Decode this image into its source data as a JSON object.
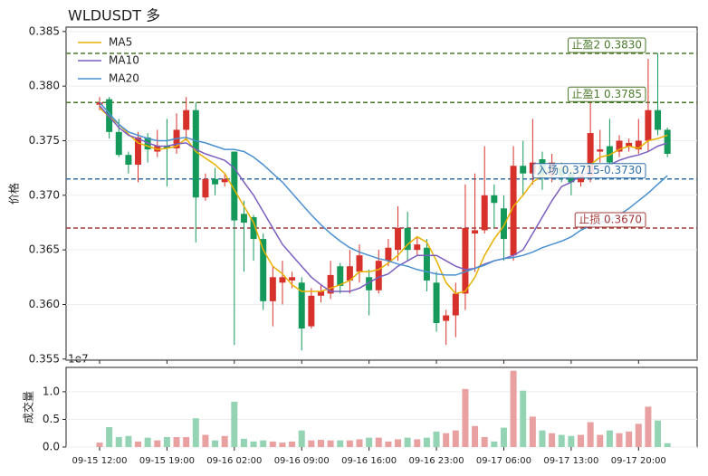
{
  "chart_data": {
    "type": "candlestick",
    "title": "WLDUSDT  多",
    "ylabel": "价格",
    "categories": [
      "09-15 12:00",
      null,
      null,
      null,
      null,
      null,
      null,
      "09-15 19:00",
      null,
      null,
      null,
      null,
      null,
      null,
      "09-16 02:00",
      null,
      null,
      null,
      null,
      null,
      null,
      "09-16 09:00",
      null,
      null,
      null,
      null,
      null,
      null,
      "09-16 16:00",
      null,
      null,
      null,
      null,
      null,
      null,
      "09-16 23:00",
      null,
      null,
      null,
      null,
      null,
      null,
      "09-17 06:00",
      null,
      null,
      null,
      null,
      null,
      null,
      "09-17 13:00",
      null,
      null,
      null,
      null,
      null,
      null,
      "09-17 20:00",
      null,
      null,
      null
    ],
    "open": [
      0.3783,
      0.3788,
      0.3758,
      0.3737,
      0.3728,
      0.3753,
      0.374,
      0.3745,
      0.3743,
      0.376,
      0.3778,
      0.3698,
      0.3715,
      0.3712,
      0.374,
      0.3683,
      0.368,
      0.366,
      0.3603,
      0.362,
      0.3622,
      0.362,
      0.358,
      0.3608,
      0.361,
      0.3635,
      0.3622,
      0.363,
      0.3625,
      0.3613,
      0.364,
      0.365,
      0.367,
      0.365,
      0.3652,
      0.362,
      0.3585,
      0.359,
      0.361,
      0.3665,
      0.3668,
      0.37,
      0.3688,
      0.3645,
      0.3727,
      0.372,
      0.3733,
      0.3718,
      0.3725,
      0.372,
      0.3712,
      0.3718,
      0.374,
      0.3745,
      0.374,
      0.3745,
      0.3742,
      0.375,
      0.3778,
      0.376
    ],
    "high": [
      0.379,
      0.379,
      0.377,
      0.374,
      0.3758,
      0.3757,
      0.376,
      0.377,
      0.3775,
      0.379,
      0.3785,
      0.372,
      0.3725,
      0.372,
      0.374,
      0.3695,
      0.3682,
      0.3665,
      0.3635,
      0.364,
      0.363,
      0.3625,
      0.3615,
      0.3618,
      0.364,
      0.3638,
      0.365,
      0.3655,
      0.3632,
      0.365,
      0.366,
      0.369,
      0.3685,
      0.3662,
      0.366,
      0.363,
      0.3595,
      0.362,
      0.371,
      0.372,
      0.3745,
      0.371,
      0.37,
      0.3745,
      0.375,
      0.377,
      0.374,
      0.3738,
      0.373,
      0.3725,
      0.3722,
      0.3785,
      0.376,
      0.377,
      0.3755,
      0.3752,
      0.377,
      0.3825,
      0.383,
      0.3762
    ],
    "low": [
      0.3778,
      0.3752,
      0.3735,
      0.372,
      0.3712,
      0.373,
      0.3735,
      0.3708,
      0.3738,
      0.375,
      0.3657,
      0.3695,
      0.37,
      0.3708,
      0.3563,
      0.363,
      0.364,
      0.3595,
      0.358,
      0.36,
      0.3615,
      0.3558,
      0.3578,
      0.3602,
      0.3605,
      0.361,
      0.361,
      0.362,
      0.359,
      0.361,
      0.3635,
      0.364,
      0.364,
      0.3645,
      0.3612,
      0.3575,
      0.3563,
      0.357,
      0.3595,
      0.363,
      0.3665,
      0.367,
      0.364,
      0.364,
      0.37,
      0.371,
      0.3705,
      0.3712,
      0.3712,
      0.37,
      0.3708,
      0.3712,
      0.373,
      0.3728,
      0.3735,
      0.374,
      0.3738,
      0.374,
      0.3755,
      0.3735
    ],
    "close": [
      0.3785,
      0.3758,
      0.3737,
      0.3728,
      0.3753,
      0.3742,
      0.3745,
      0.3743,
      0.376,
      0.3778,
      0.3698,
      0.3715,
      0.371,
      0.3715,
      0.3677,
      0.3675,
      0.366,
      0.3603,
      0.3625,
      0.3625,
      0.3625,
      0.3578,
      0.3608,
      0.3612,
      0.3627,
      0.3617,
      0.3635,
      0.3645,
      0.3613,
      0.364,
      0.3652,
      0.367,
      0.365,
      0.3655,
      0.3622,
      0.3583,
      0.359,
      0.361,
      0.367,
      0.3668,
      0.37,
      0.3693,
      0.366,
      0.3727,
      0.372,
      0.373,
      0.3718,
      0.373,
      0.3718,
      0.3712,
      0.3718,
      0.3757,
      0.3742,
      0.373,
      0.375,
      0.3748,
      0.375,
      0.3778,
      0.376,
      0.3738
    ],
    "up_color": "#d7312b",
    "down_color": "#14995a",
    "series": [
      {
        "name": "MA5",
        "color": "#e8b100",
        "values": [
          0.378,
          0.3772,
          0.3765,
          0.3756,
          0.3748,
          0.3745,
          0.3742,
          0.3743,
          0.3745,
          0.3752,
          0.374,
          0.3734,
          0.3728,
          0.372,
          0.3705,
          0.369,
          0.3675,
          0.365,
          0.3635,
          0.3628,
          0.3618,
          0.3612,
          0.3612,
          0.3612,
          0.3615,
          0.3618,
          0.3622,
          0.363,
          0.363,
          0.3632,
          0.3638,
          0.3645,
          0.3655,
          0.3662,
          0.3657,
          0.364,
          0.362,
          0.361,
          0.3612,
          0.3625,
          0.3645,
          0.366,
          0.3672,
          0.369,
          0.37,
          0.3712,
          0.3718,
          0.3725,
          0.3725,
          0.3722,
          0.372,
          0.3728,
          0.3735,
          0.3737,
          0.3742,
          0.3745,
          0.3743,
          0.375,
          0.3752,
          0.3755
        ]
      },
      {
        "name": "MA10",
        "color": "#7b5fc0",
        "values": [
          0.3782,
          0.3772,
          0.3762,
          0.3755,
          0.3752,
          0.3748,
          0.3745,
          0.3745,
          0.3747,
          0.3748,
          0.3742,
          0.3738,
          0.3735,
          0.3732,
          0.3725,
          0.3712,
          0.37,
          0.3685,
          0.367,
          0.3655,
          0.3645,
          0.3635,
          0.3625,
          0.3618,
          0.3612,
          0.3612,
          0.3612,
          0.3615,
          0.362,
          0.3625,
          0.3628,
          0.3635,
          0.364,
          0.3645,
          0.3645,
          0.3645,
          0.364,
          0.3635,
          0.3632,
          0.3633,
          0.3637,
          0.364,
          0.3642,
          0.3645,
          0.365,
          0.3665,
          0.368,
          0.3695,
          0.3708,
          0.3712,
          0.3718,
          0.3722,
          0.3725,
          0.3728,
          0.3732,
          0.3735,
          0.3737,
          0.374,
          0.3745,
          0.3748
        ]
      },
      {
        "name": "MA20",
        "color": "#4a90d0",
        "values": [
          0.3785,
          0.3775,
          0.3765,
          0.3758,
          0.3755,
          0.3752,
          0.375,
          0.375,
          0.3752,
          0.3753,
          0.375,
          0.3748,
          0.3745,
          0.3742,
          0.3742,
          0.374,
          0.3735,
          0.3728,
          0.372,
          0.3712,
          0.3702,
          0.3692,
          0.3682,
          0.3673,
          0.3665,
          0.3658,
          0.3652,
          0.3648,
          0.3645,
          0.3642,
          0.364,
          0.3637,
          0.3635,
          0.3632,
          0.363,
          0.3628,
          0.3627,
          0.3627,
          0.363,
          0.3633,
          0.3636,
          0.364,
          0.3642,
          0.3643,
          0.3645,
          0.3648,
          0.3652,
          0.3655,
          0.3658,
          0.3662,
          0.3668,
          0.3672,
          0.3675,
          0.3678,
          0.3682,
          0.3688,
          0.3695,
          0.3702,
          0.371,
          0.3718
        ]
      }
    ],
    "ylim": [
      0.3549,
      0.3854
    ],
    "yticks": [
      0.355,
      {
        "value": 0.36,
        "label": "0.360"
      },
      0.365,
      {
        "value": 0.37,
        "label": "0.370"
      },
      0.375,
      {
        "value": 0.38,
        "label": "0.380"
      },
      0.385
    ],
    "levels": [
      {
        "label": "止盈2 0.3830",
        "value": 0.383,
        "color": "#4a7a2a"
      },
      {
        "label": "止盈1 0.3785",
        "value": 0.3785,
        "color": "#4a7a2a"
      },
      {
        "label": "入场 0.3715-0.3730",
        "value": 0.3715,
        "color": "#2f6fa8"
      },
      {
        "label": "止损 0.3670",
        "value": 0.367,
        "color": "#a33a3a"
      }
    ],
    "volume": {
      "ylabel": "成交量",
      "offset_label": "1e7",
      "values": [
        0.08,
        0.36,
        0.18,
        0.2,
        0.1,
        0.17,
        0.12,
        0.18,
        0.18,
        0.18,
        0.52,
        0.22,
        0.12,
        0.2,
        0.82,
        0.15,
        0.1,
        0.12,
        0.1,
        0.08,
        0.1,
        0.3,
        0.12,
        0.13,
        0.12,
        0.12,
        0.12,
        0.14,
        0.17,
        0.17,
        0.1,
        0.14,
        0.17,
        0.14,
        0.17,
        0.28,
        0.25,
        0.3,
        1.05,
        0.38,
        0.18,
        0.1,
        0.35,
        1.38,
        1.02,
        0.55,
        0.3,
        0.25,
        0.22,
        0.2,
        0.22,
        0.45,
        0.22,
        0.3,
        0.25,
        0.28,
        0.42,
        0.73,
        0.48,
        0.07
      ],
      "up_color": "#e8a0a0",
      "down_color": "#94d4b4",
      "ylim": [
        0,
        1.44
      ],
      "yticks": [
        {
          "value": 0,
          "label": "0.0"
        },
        0.5,
        {
          "value": 1,
          "label": "1.0"
        }
      ]
    }
  }
}
